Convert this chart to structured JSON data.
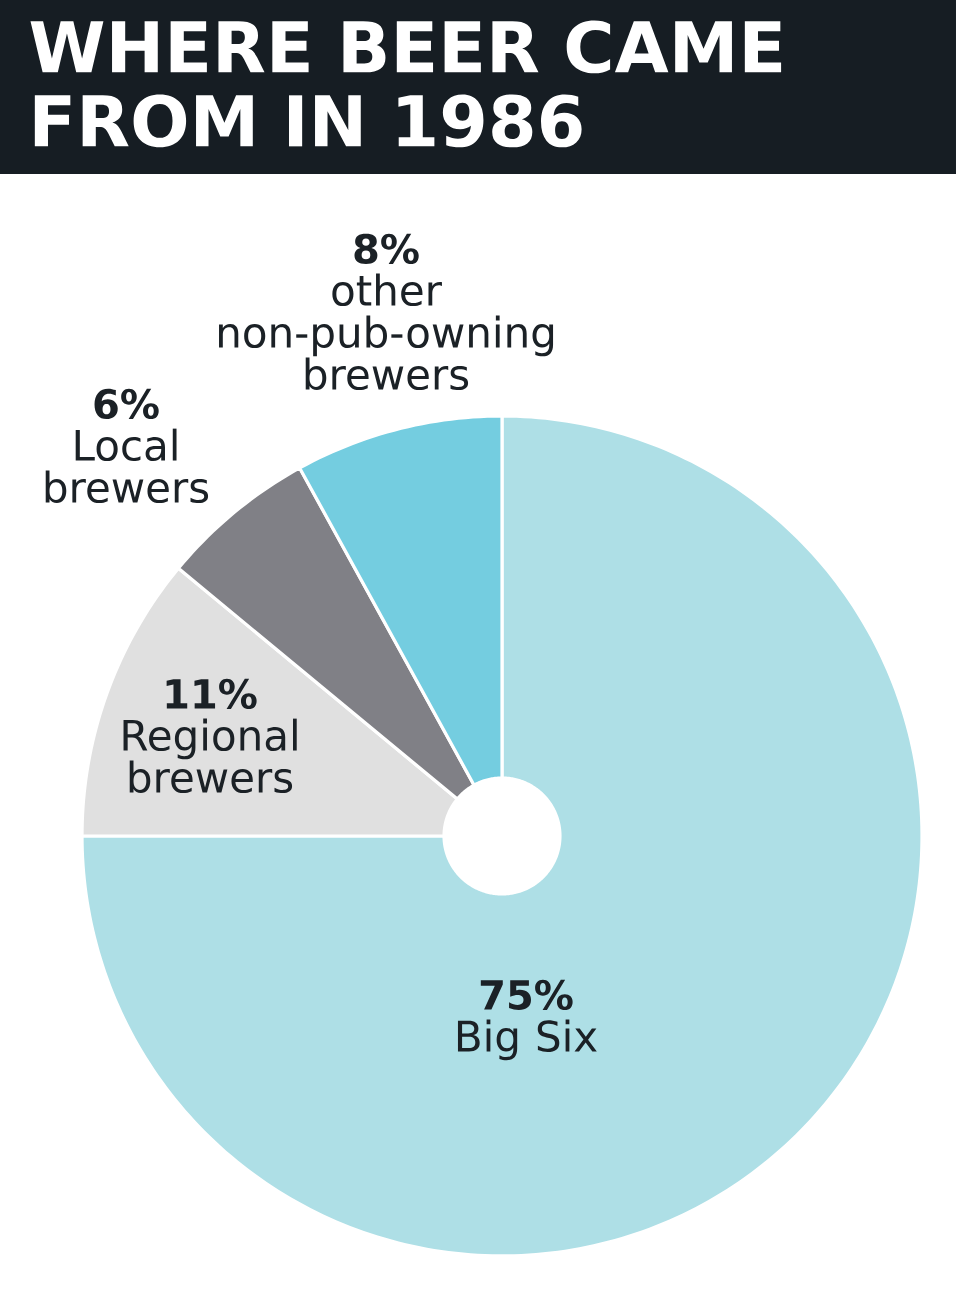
{
  "chart_data": {
    "type": "donut",
    "title": "WHERE BEER CAME FROM IN 1986",
    "categories": [
      "Big Six",
      "Regional brewers",
      "Local brewers",
      "other non-pub-owning brewers"
    ],
    "values": [
      75,
      11,
      6,
      8
    ],
    "value_labels": [
      "75%",
      "11%",
      "6%",
      "8%"
    ],
    "colors": [
      "#aedfe6",
      "#e0e0e0",
      "#808086",
      "#74cde0"
    ]
  }
}
